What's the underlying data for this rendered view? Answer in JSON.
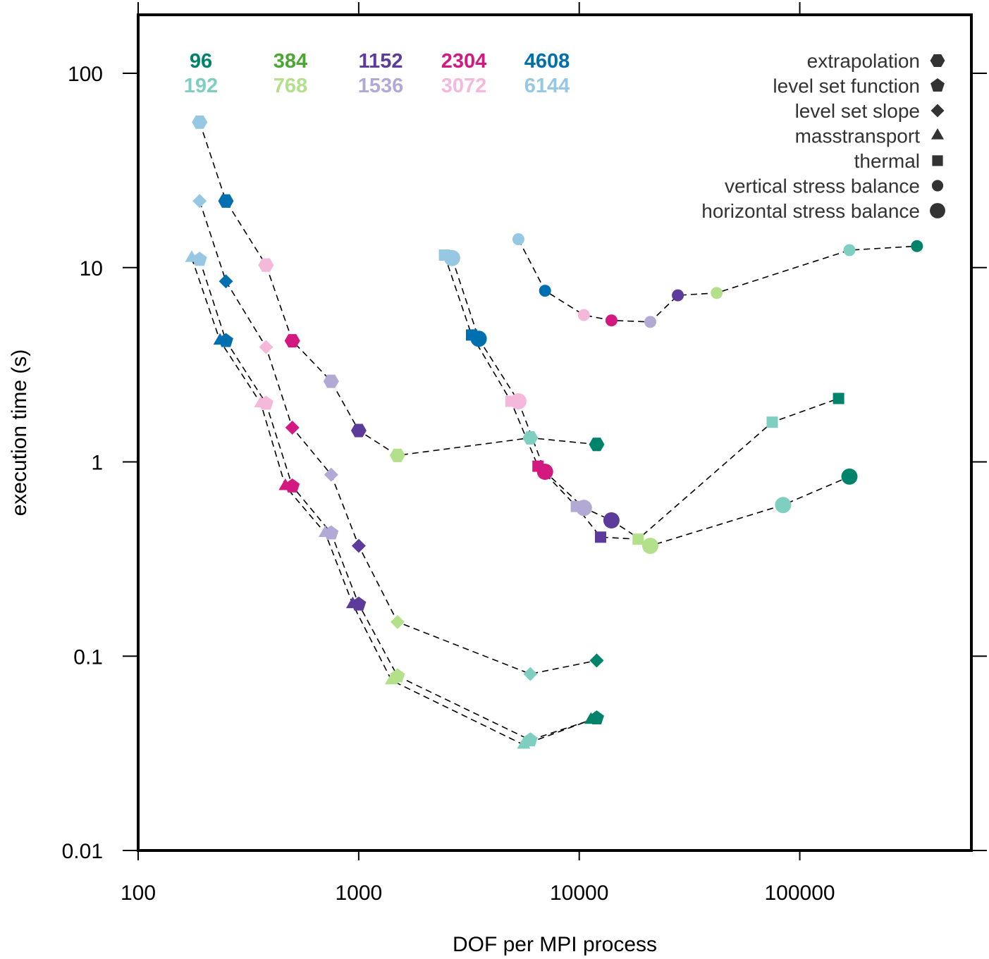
{
  "chart_data": {
    "type": "scatter",
    "xlabel": "DOF per MPI process",
    "ylabel": "execution time (s)",
    "xscale": "log",
    "yscale": "log",
    "xlim": [
      100,
      600000
    ],
    "ylim": [
      0.01,
      200
    ],
    "xticks": [
      {
        "value": 100,
        "label": "100"
      },
      {
        "value": 1000,
        "label": "1000"
      },
      {
        "value": 10000,
        "label": "10000"
      },
      {
        "value": 100000,
        "label": "100000"
      }
    ],
    "yticks": [
      {
        "value": 0.01,
        "label": "0.01"
      },
      {
        "value": 0.1,
        "label": "0.1"
      },
      {
        "value": 1,
        "label": "1"
      },
      {
        "value": 10,
        "label": "10"
      },
      {
        "value": 100,
        "label": "100"
      }
    ],
    "process_counts": [
      {
        "label": "96",
        "color": "#00836b"
      },
      {
        "label": "192",
        "color": "#7fcfc0"
      },
      {
        "label": "384",
        "color": "#4aa832"
      },
      {
        "label": "768",
        "color": "#b3e08a"
      },
      {
        "label": "1152",
        "color": "#5c3b9b"
      },
      {
        "label": "1536",
        "color": "#b2aad4"
      },
      {
        "label": "2304",
        "color": "#d3197f"
      },
      {
        "label": "3072",
        "color": "#f4b9da"
      },
      {
        "label": "4608",
        "color": "#006fb0"
      },
      {
        "label": "6144",
        "color": "#96c8e4"
      }
    ],
    "legend_placement": "top-right",
    "series": [
      {
        "name": "extrapolation",
        "marker": "hexagon",
        "points": [
          {
            "x": 190,
            "y": 56,
            "c": "6144"
          },
          {
            "x": 250,
            "y": 22,
            "c": "4608"
          },
          {
            "x": 380,
            "y": 10.3,
            "c": "3072"
          },
          {
            "x": 500,
            "y": 4.2,
            "c": "2304"
          },
          {
            "x": 750,
            "y": 2.6,
            "c": "1536"
          },
          {
            "x": 1000,
            "y": 1.45,
            "c": "1152"
          },
          {
            "x": 1500,
            "y": 1.08,
            "c": "768"
          },
          {
            "x": 6000,
            "y": 1.33,
            "c": "192"
          },
          {
            "x": 12000,
            "y": 1.23,
            "c": "96"
          }
        ]
      },
      {
        "name": "level set function",
        "marker": "pentagon",
        "points": [
          {
            "x": 190,
            "y": 11,
            "c": "6144"
          },
          {
            "x": 250,
            "y": 4.2,
            "c": "4608"
          },
          {
            "x": 380,
            "y": 2.0,
            "c": "3072"
          },
          {
            "x": 500,
            "y": 0.75,
            "c": "2304"
          },
          {
            "x": 750,
            "y": 0.43,
            "c": "1536"
          },
          {
            "x": 1000,
            "y": 0.185,
            "c": "1152"
          },
          {
            "x": 1500,
            "y": 0.079,
            "c": "768"
          },
          {
            "x": 6000,
            "y": 0.037,
            "c": "192"
          },
          {
            "x": 12000,
            "y": 0.048,
            "c": "96"
          }
        ]
      },
      {
        "name": "level set slope",
        "marker": "diamond",
        "points": [
          {
            "x": 190,
            "y": 22,
            "c": "6144"
          },
          {
            "x": 250,
            "y": 8.5,
            "c": "4608"
          },
          {
            "x": 380,
            "y": 3.9,
            "c": "3072"
          },
          {
            "x": 500,
            "y": 1.5,
            "c": "2304"
          },
          {
            "x": 750,
            "y": 0.86,
            "c": "1536"
          },
          {
            "x": 1000,
            "y": 0.37,
            "c": "1152"
          },
          {
            "x": 1500,
            "y": 0.15,
            "c": "768"
          },
          {
            "x": 6000,
            "y": 0.081,
            "c": "192"
          },
          {
            "x": 12000,
            "y": 0.095,
            "c": "96"
          }
        ]
      },
      {
        "name": "masstransport",
        "marker": "triangle",
        "points": [
          {
            "x": 175,
            "y": 11.2,
            "c": "6144"
          },
          {
            "x": 235,
            "y": 4.2,
            "c": "4608"
          },
          {
            "x": 360,
            "y": 2.0,
            "c": "3072"
          },
          {
            "x": 465,
            "y": 0.75,
            "c": "2304"
          },
          {
            "x": 705,
            "y": 0.43,
            "c": "1536"
          },
          {
            "x": 940,
            "y": 0.185,
            "c": "1152"
          },
          {
            "x": 1410,
            "y": 0.075,
            "c": "768"
          },
          {
            "x": 5600,
            "y": 0.035,
            "c": "192"
          },
          {
            "x": 11300,
            "y": 0.047,
            "c": "96"
          }
        ]
      },
      {
        "name": "thermal",
        "marker": "square",
        "points": [
          {
            "x": 2450,
            "y": 11.6,
            "c": "6144"
          },
          {
            "x": 3250,
            "y": 4.5,
            "c": "4608"
          },
          {
            "x": 4900,
            "y": 2.05,
            "c": "3072"
          },
          {
            "x": 6500,
            "y": 0.95,
            "c": "2304"
          },
          {
            "x": 9700,
            "y": 0.59,
            "c": "1536"
          },
          {
            "x": 12500,
            "y": 0.41,
            "c": "1152"
          },
          {
            "x": 18500,
            "y": 0.4,
            "c": "768"
          },
          {
            "x": 75000,
            "y": 1.6,
            "c": "192"
          },
          {
            "x": 150000,
            "y": 2.12,
            "c": "96"
          }
        ]
      },
      {
        "name": "vertical stress balance",
        "marker": "circle-small",
        "points": [
          {
            "x": 5300,
            "y": 14,
            "c": "6144"
          },
          {
            "x": 7000,
            "y": 7.6,
            "c": "4608"
          },
          {
            "x": 10500,
            "y": 5.7,
            "c": "3072"
          },
          {
            "x": 14000,
            "y": 5.35,
            "c": "2304"
          },
          {
            "x": 21000,
            "y": 5.25,
            "c": "1536"
          },
          {
            "x": 28000,
            "y": 7.2,
            "c": "1152"
          },
          {
            "x": 42000,
            "y": 7.4,
            "c": "768"
          },
          {
            "x": 168000,
            "y": 12.3,
            "c": "192"
          },
          {
            "x": 340000,
            "y": 12.9,
            "c": "96"
          }
        ]
      },
      {
        "name": "horizontal stress balance",
        "marker": "circle-large",
        "points": [
          {
            "x": 2650,
            "y": 11.2,
            "c": "6144"
          },
          {
            "x": 3500,
            "y": 4.3,
            "c": "4608"
          },
          {
            "x": 5300,
            "y": 2.05,
            "c": "3072"
          },
          {
            "x": 7000,
            "y": 0.89,
            "c": "2304"
          },
          {
            "x": 10500,
            "y": 0.58,
            "c": "1536"
          },
          {
            "x": 14000,
            "y": 0.5,
            "c": "1152"
          },
          {
            "x": 21000,
            "y": 0.37,
            "c": "768"
          },
          {
            "x": 84000,
            "y": 0.6,
            "c": "192"
          },
          {
            "x": 168000,
            "y": 0.84,
            "c": "96"
          }
        ]
      }
    ]
  }
}
